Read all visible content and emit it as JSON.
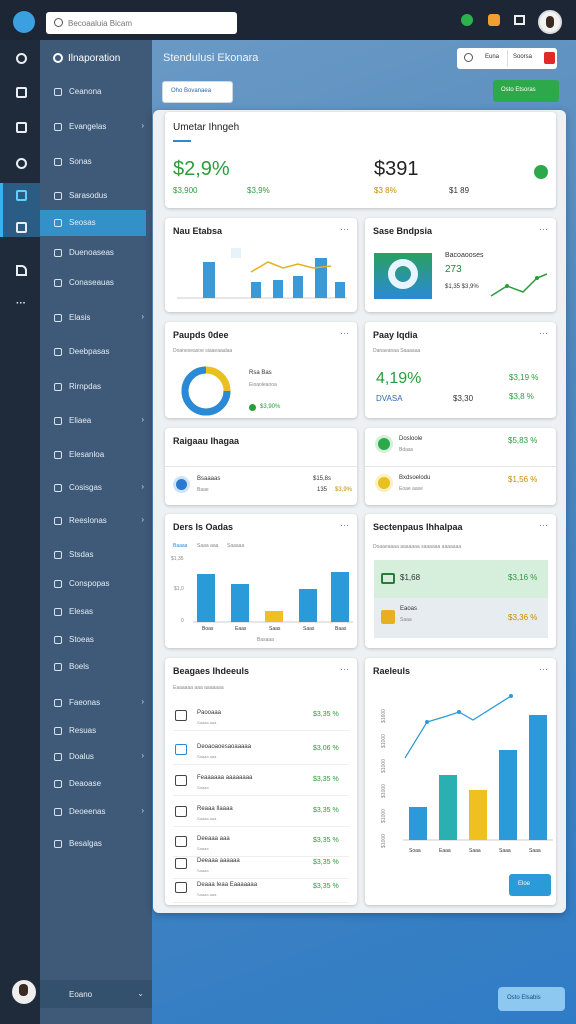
{
  "topbar": {
    "search": "Becoaaluia Bicam"
  },
  "sidebar": {
    "title": "Ilnaporation",
    "items": [
      "Ceanona",
      "Evangelas",
      "Sonas",
      "Sarasodus",
      "Seosas",
      "Duenoaseas",
      "Conaseauas",
      "Elasis",
      "Deebpasas",
      "Rirnpdas",
      "Eliaea",
      "Elesanloa",
      "Cosisgas",
      "Reeslonas",
      "Stsdas",
      "Conspopas",
      "Elesas",
      "Stoeas",
      "Boels",
      "Faeonas",
      "Resuas",
      "Doalus",
      "Deaoase",
      "Deoeenas",
      "Besalgas"
    ],
    "footer": "Eoano"
  },
  "header": {
    "title": "Stendulusi Ekonara",
    "tab1": "Euna",
    "tab2": "Soorsa",
    "filter": "Oho Bovanaea",
    "action": "Osto Etsoras"
  },
  "cards": [
    {
      "title": "Umetar Ihngeh",
      "value1": "$2,9%",
      "sub1a": "$3,900",
      "sub1b": "$3,9%",
      "value2": "$391",
      "sub2a": "$3 8%",
      "sub2b": "$1 89"
    },
    {
      "title": "Nau Etabsa"
    },
    {
      "title": "Sase Bndpsia",
      "label": "Bacoaooses",
      "value": "273",
      "sub": "$1,35 $3,9%"
    },
    {
      "title": "Paupds 0dee",
      "subtitle": "Doaneseasoe siaaeaaalaa",
      "legend1": "Rsa Bas",
      "legend2": "Eioaoleaooa",
      "value": "$3,90%"
    },
    {
      "title": "Paay Iqdia",
      "subtitle": "Danaeanaa Saaaaaa",
      "value": "4,19%",
      "value2": "$3,19 %",
      "label": "DVASA",
      "value3": "$3,30",
      "value4": "$3,8 %"
    },
    {
      "title": "Raigaau Ihagaa",
      "item": "Bsaaaas",
      "itemsub": "Baae",
      "v1": "$15,8s",
      "v2": "135",
      "v3": "$3,9%"
    },
    {
      "items": [
        {
          "name": "Dosloole",
          "sub": "Bdaas",
          "value": "$5,83 %"
        },
        {
          "name": "Bxdsoelodu",
          "sub": "Eoae aase",
          "value": "$1,56 %"
        }
      ]
    },
    {
      "title": "Ders Is Oadas",
      "legend": [
        "Baaaa",
        "Saaa aaa",
        "Saaaaa"
      ],
      "ylabels": [
        "$1,35",
        "$1,0",
        "0"
      ],
      "xlabels": [
        "Boas",
        "Eaas",
        "Saas",
        "Saas",
        "Baas"
      ],
      "axis": "Basaaa"
    },
    {
      "title": "Sectenpaus Ihhalpaa",
      "subtitle": "Doaaeaaaa aaaaaaa saaaaaa aaaaaaa",
      "row1": "$1,68",
      "row1v": "$3,16 %",
      "row2": "Eaoas",
      "row2sub": "Saaa",
      "row2v": "$3,36 %"
    },
    {
      "title": "Beagaes Ihdeeuls",
      "subtitle": "Eaaaaaa aaa aaaaaaa",
      "rows": [
        {
          "name": "Paooaaa",
          "sub": "Saaaa aaa",
          "value": "$3,35 %"
        },
        {
          "name": "Deoaoaoesaoaaaaa",
          "sub": "Saaaa aaa",
          "value": "$3,06 %"
        },
        {
          "name": "Feaaaaaa aaaaaaaa",
          "sub": "Saaaa",
          "value": "$3,35 %"
        },
        {
          "name": "Reaaa Ilaaaa",
          "sub": "Saaaa aaa",
          "value": "$3,35 %"
        },
        {
          "name": "Deeaaa aaa",
          "sub": "Saaaa",
          "value": "$3,35 %"
        },
        {
          "name": "Deeaaa aaaaaa",
          "sub": "Saaaa",
          "value": "$3,35 %"
        },
        {
          "name": "Deaaa Ieaa Eaaaaaaa",
          "sub": "Saaaa aaa",
          "value": "$3,35 %"
        }
      ]
    },
    {
      "title": "Raeleuls",
      "ylabels": [
        "$1600",
        "$1000",
        "$1000",
        "$1000",
        "$1000",
        "$1000"
      ],
      "xlabels": [
        "Soaa",
        "Eaaa",
        "Saaa",
        "Saaa",
        "Saaa"
      ],
      "button": "Eloe"
    }
  ],
  "footer_button": "Osto Elsabis"
}
